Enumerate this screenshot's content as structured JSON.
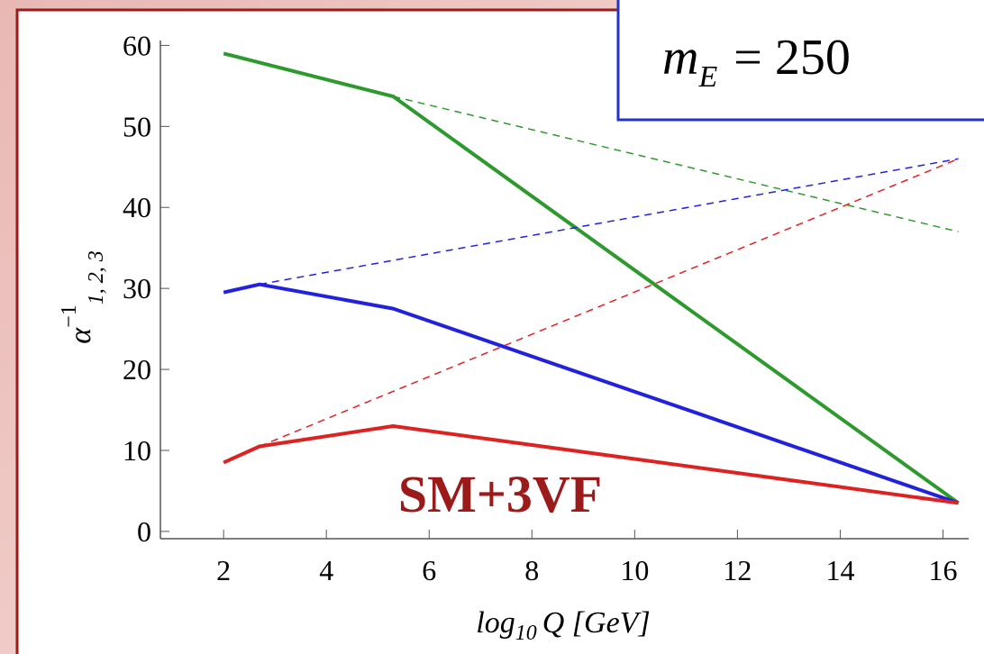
{
  "chart_data": {
    "type": "line",
    "xlabel": {
      "base": "log",
      "subscript": "10",
      "rest": "Q [GeV]"
    },
    "ylabel": {
      "base": "α",
      "superscript": "−1",
      "subscript": "1, 2, 3"
    },
    "annotations": [
      {
        "text": "SM+3VF",
        "color": "#9b1b1b"
      }
    ],
    "annotation_box": {
      "variable": "m",
      "subscript": "E",
      "value": "= 250",
      "border": "#2233cc"
    },
    "xlim": [
      0.77,
      16.5
    ],
    "ylim": [
      -0.9,
      60.6
    ],
    "xticks": [
      2,
      4,
      6,
      8,
      10,
      12,
      14,
      16
    ],
    "yticks": [
      0,
      10,
      20,
      30,
      40,
      50,
      60
    ],
    "series": [
      {
        "color": "#2e9a2e",
        "dashed": false,
        "x": [
          2,
          5.3,
          16.3
        ],
        "values": [
          59,
          53.7,
          3.5
        ]
      },
      {
        "color": "#2e9a2e",
        "dashed": true,
        "x": [
          5.3,
          16.3
        ],
        "values": [
          53.7,
          37
        ]
      },
      {
        "color": "#2222dd",
        "dashed": false,
        "x": [
          2,
          2.7,
          5.3,
          16.3
        ],
        "values": [
          29.5,
          30.5,
          27.5,
          3.5
        ]
      },
      {
        "color": "#2222dd",
        "dashed": true,
        "x": [
          2.7,
          16.3
        ],
        "values": [
          30.5,
          46
        ]
      },
      {
        "color": "#dd2222",
        "dashed": false,
        "x": [
          2,
          2.7,
          5.3,
          16.3
        ],
        "values": [
          8.5,
          10.5,
          13,
          3.5
        ]
      },
      {
        "color": "#dd2222",
        "dashed": true,
        "x": [
          2.7,
          16.3
        ],
        "values": [
          10.5,
          46
        ]
      }
    ]
  }
}
